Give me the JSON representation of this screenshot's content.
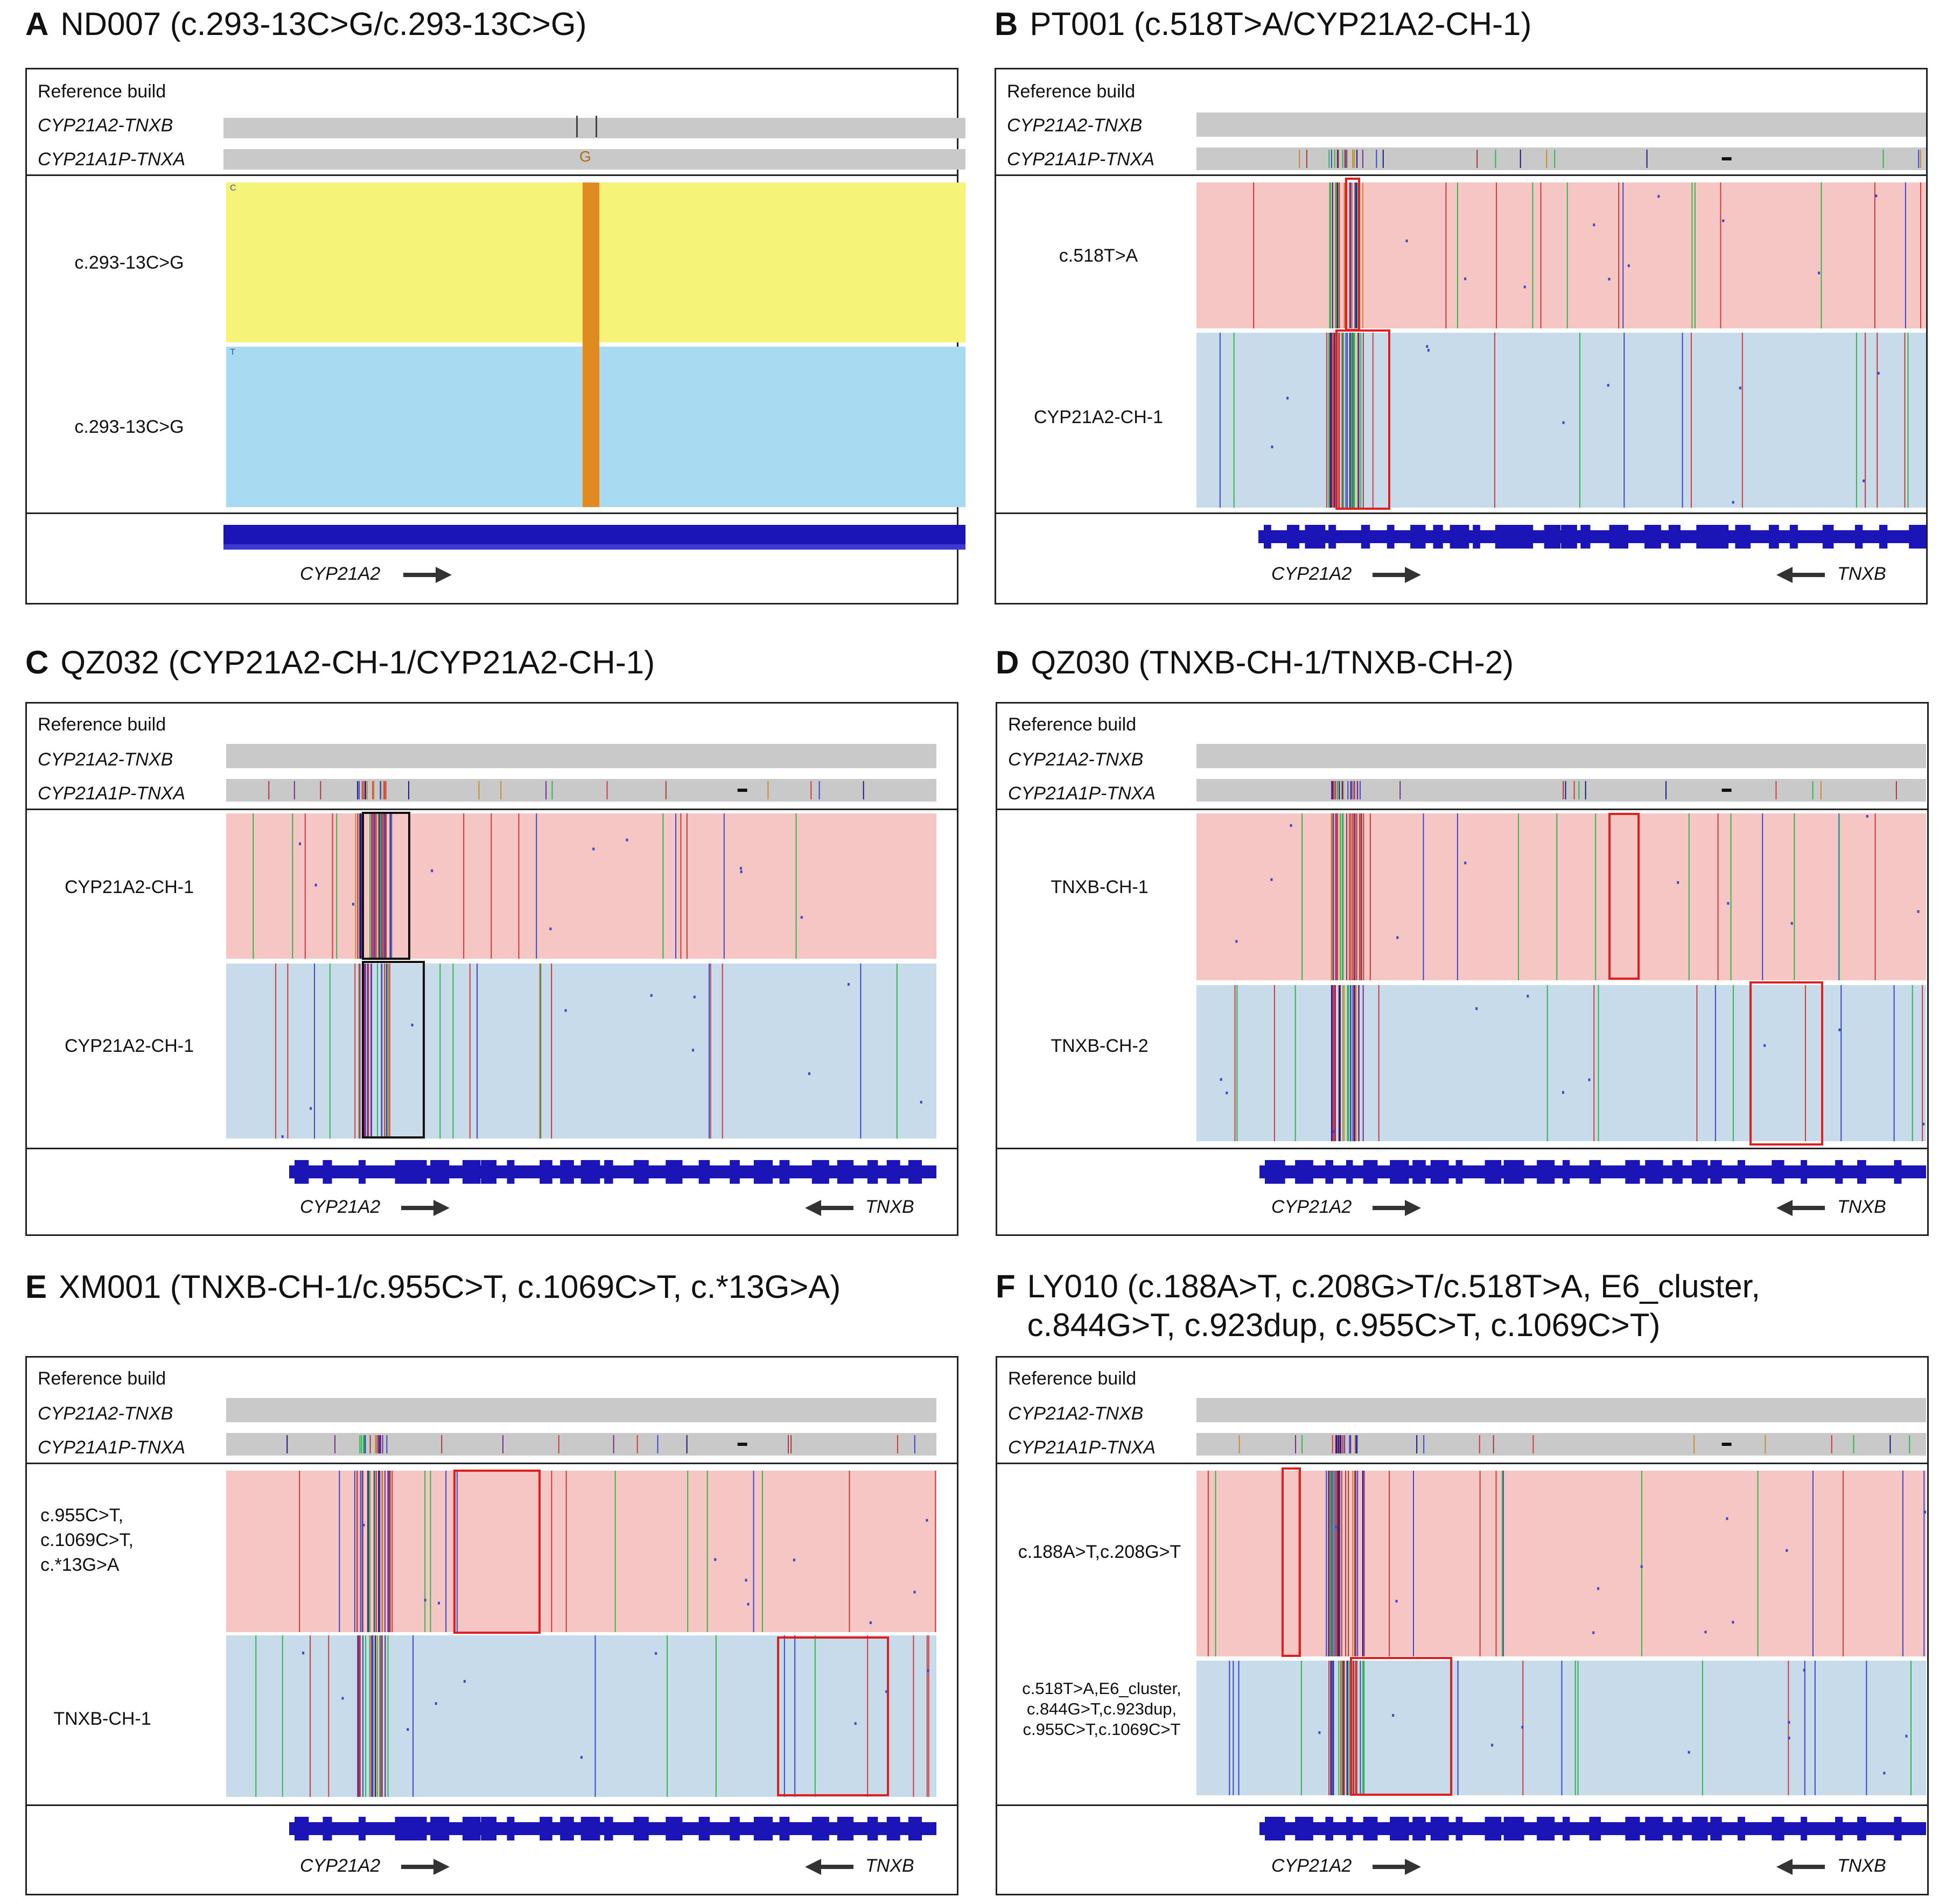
{
  "figure": {
    "colors": {
      "hap1": "#f6c6c4",
      "hap2": "#c8dbea",
      "hapA1": "#f6f478",
      "hapA2": "#a8dbf2",
      "ref": "#c9c9c9",
      "gene": "#1b15b8",
      "highlight_red": "#e02020",
      "highlight_black": "#111111"
    },
    "common": {
      "reference_build": "Reference build",
      "track1": "CYP21A2-TNXB",
      "track2": "CYP21A1P-TNXA",
      "gene_left": "CYP21A2",
      "gene_right": "TNXB"
    },
    "panels": [
      {
        "letter": "A",
        "title": "ND007 (c.293-13C>G/c.293-13C>G)",
        "hap1_label": "c.293-13C>G",
        "hap2_label": "c.293-13C>G",
        "ref_base": "G",
        "hap1_base": "C",
        "hap2_base": "T"
      },
      {
        "letter": "B",
        "title": "PT001 (c.518T>A/CYP21A2-CH-1)",
        "hap1_label": "c.518T>A",
        "hap2_label": "CYP21A2-CH-1"
      },
      {
        "letter": "C",
        "title": "QZ032 (CYP21A2-CH-1/CYP21A2-CH-1)",
        "hap1_label": "CYP21A2-CH-1",
        "hap2_label": "CYP21A2-CH-1"
      },
      {
        "letter": "D",
        "title": "QZ030 (TNXB-CH-1/TNXB-CH-2)",
        "hap1_label": "TNXB-CH-1",
        "hap2_label": "TNXB-CH-2"
      },
      {
        "letter": "E",
        "title": "XM001 (TNXB-CH-1/c.955C>T, c.1069C>T, c.*13G>A)",
        "hap1_label": "c.955C>T,\nc.1069C>T,\nc.*13G>A",
        "hap2_label": "TNXB-CH-1"
      },
      {
        "letter": "F",
        "title": "LY010 (c.188A>T, c.208G>T/c.518T>A, E6_cluster,\nc.844G>T, c.923dup, c.955C>T, c.1069C>T)",
        "hap1_label": "c.188A>T,c.208G>T",
        "hap2_label": "c.518T>A,E6_cluster,\nc.844G>T,c.923dup,\nc.955C>T,c.1069C>T"
      }
    ]
  }
}
